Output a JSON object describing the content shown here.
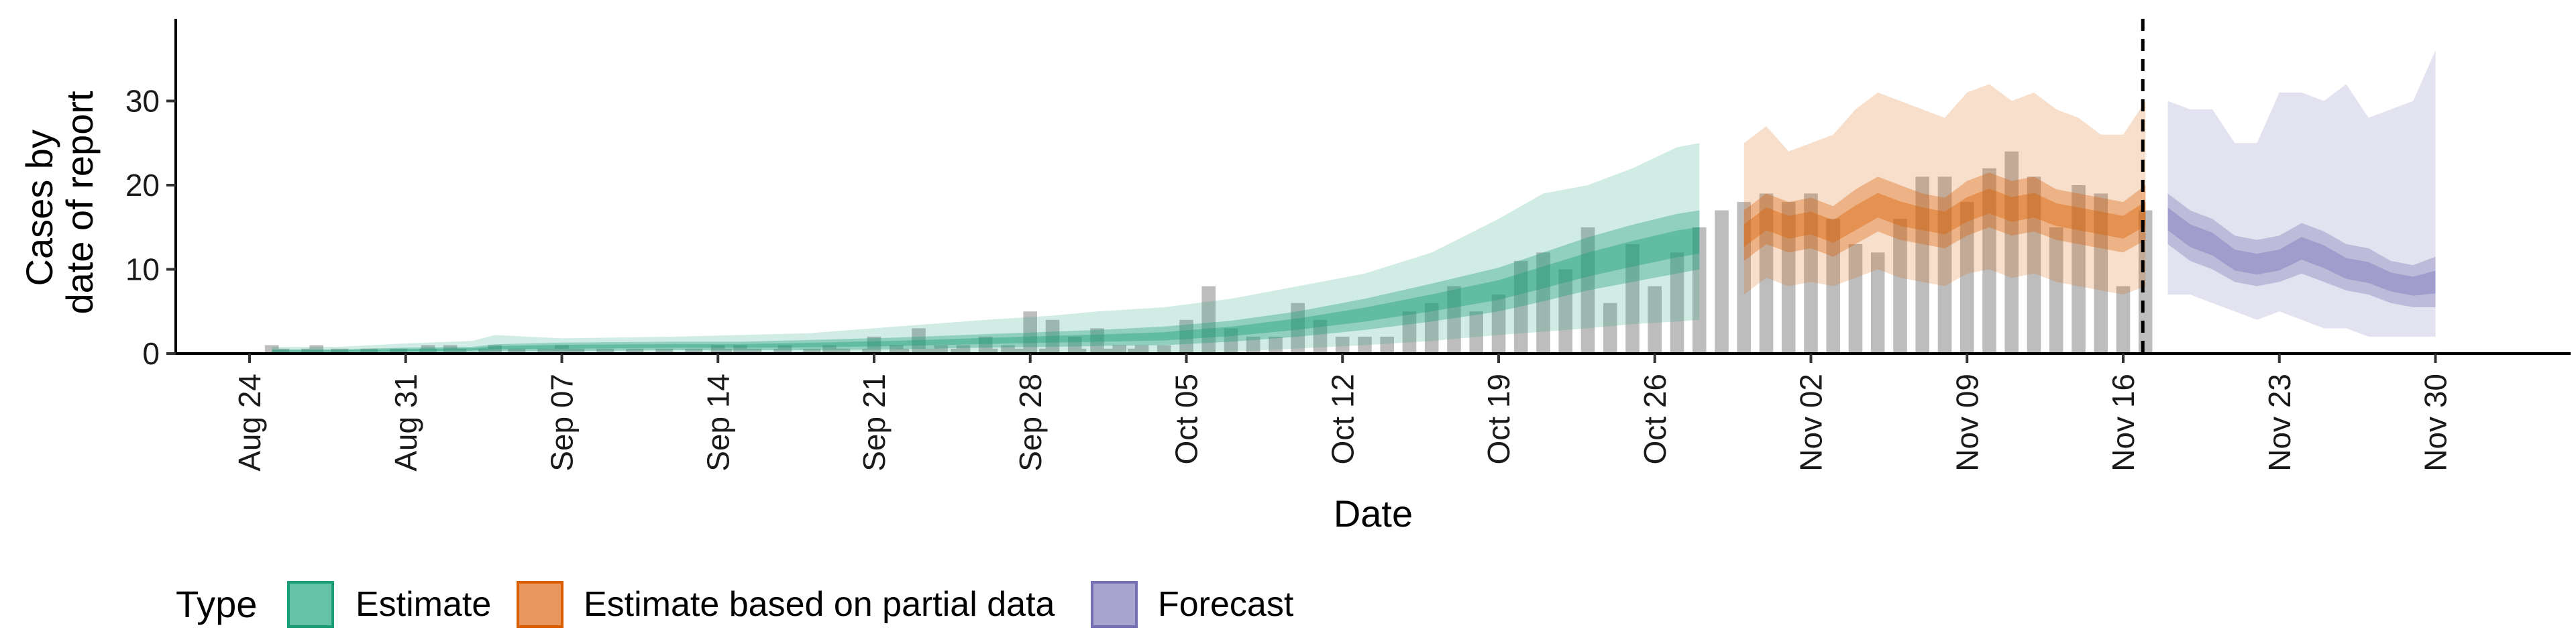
{
  "chart_data": {
    "type": "area",
    "xlabel": "Date",
    "ylabel_lines": [
      "Cases by",
      "date of report"
    ],
    "ylim": [
      0,
      37
    ],
    "yticks": [
      0,
      10,
      20,
      30
    ],
    "x_start": "2020-08-24",
    "x_ticks": [
      "Aug 24",
      "Aug 31",
      "Sep 07",
      "Sep 14",
      "Sep 21",
      "Sep 28",
      "Oct 05",
      "Oct 12",
      "Oct 19",
      "Oct 26",
      "Nov 02",
      "Nov 09",
      "Nov 16",
      "Nov 23",
      "Nov 30"
    ],
    "report_date": "Nov 17",
    "legend": {
      "title": "Type",
      "position": "bottom",
      "items": [
        {
          "label": "Estimate",
          "fill": "#66c2a5",
          "stroke": "#1b9e77"
        },
        {
          "label": "Estimate based on partial data",
          "fill": "#e8985e",
          "stroke": "#d95f02"
        },
        {
          "label": "Forecast",
          "fill": "#a8a4d0",
          "stroke": "#7570b3"
        }
      ]
    },
    "colors": {
      "estimate": "#1b9e77",
      "partial": "#d95f02",
      "forecast": "#7570b3",
      "bars": "#bdbdbd"
    },
    "bars": {
      "dates": [
        "Aug 25",
        "Aug 26",
        "Aug 27",
        "Aug 28",
        "Aug 29",
        "Aug 30",
        "Aug 31",
        "Sep 01",
        "Sep 02",
        "Sep 03",
        "Sep 04",
        "Sep 05",
        "Sep 06",
        "Sep 07",
        "Sep 08",
        "Sep 09",
        "Sep 10",
        "Sep 11",
        "Sep 12",
        "Sep 13",
        "Sep 14",
        "Sep 15",
        "Sep 16",
        "Sep 17",
        "Sep 18",
        "Sep 19",
        "Sep 20",
        "Sep 21",
        "Sep 22",
        "Sep 23",
        "Sep 24",
        "Sep 25",
        "Sep 26",
        "Sep 27",
        "Sep 28",
        "Sep 29",
        "Sep 30",
        "Oct 01",
        "Oct 02",
        "Oct 03",
        "Oct 04",
        "Oct 05",
        "Oct 06",
        "Oct 07",
        "Oct 08",
        "Oct 09",
        "Oct 10",
        "Oct 11",
        "Oct 12",
        "Oct 13",
        "Oct 14",
        "Oct 15",
        "Oct 16",
        "Oct 17",
        "Oct 18",
        "Oct 19",
        "Oct 20",
        "Oct 21",
        "Oct 22",
        "Oct 23",
        "Oct 24",
        "Oct 25",
        "Oct 26",
        "Oct 27",
        "Oct 28",
        "Oct 29",
        "Oct 30",
        "Oct 31",
        "Nov 01",
        "Nov 02",
        "Nov 03",
        "Nov 04",
        "Nov 05",
        "Nov 06",
        "Nov 07",
        "Nov 08",
        "Nov 09",
        "Nov 10",
        "Nov 11",
        "Nov 12",
        "Nov 13",
        "Nov 14",
        "Nov 15",
        "Nov 16",
        "Nov 17"
      ],
      "values": [
        1,
        0,
        1,
        0,
        0,
        0,
        0,
        1,
        1,
        0,
        1,
        0,
        0,
        1,
        0,
        0,
        0,
        0,
        0,
        0,
        1,
        1,
        0,
        1,
        0,
        1,
        0,
        2,
        1,
        3,
        1,
        1,
        2,
        1,
        5,
        4,
        2,
        3,
        1,
        1,
        1,
        4,
        8,
        3,
        2,
        2,
        6,
        4,
        2,
        2,
        2,
        5,
        6,
        8,
        5,
        7,
        11,
        12,
        10,
        15,
        6,
        13,
        8,
        12,
        15,
        17,
        18,
        19,
        18,
        19,
        16,
        13,
        12,
        16,
        21,
        21,
        18,
        22,
        24,
        21,
        15,
        20,
        19,
        8,
        17
      ],
      "dashed_line_range": [
        "Aug 25",
        "Oct 04"
      ]
    },
    "estimate": {
      "dates": [
        "Aug 25",
        "Aug 28",
        "Aug 31",
        "Sep 03",
        "Sep 04",
        "Sep 07",
        "Sep 12",
        "Sep 15",
        "Sep 18",
        "Sep 22",
        "Sep 26",
        "Sep 29",
        "Oct 01",
        "Oct 04",
        "Oct 07",
        "Oct 10",
        "Oct 13",
        "Oct 16",
        "Oct 19",
        "Oct 21",
        "Oct 23",
        "Oct 25",
        "Oct 27",
        "Oct 28"
      ],
      "median": [
        0.3,
        0.3,
        0.4,
        0.5,
        0.7,
        0.8,
        0.9,
        0.9,
        1.0,
        1.2,
        1.5,
        1.7,
        1.8,
        2.0,
        2.6,
        3.5,
        4.6,
        6.0,
        7.5,
        9.0,
        10.5,
        11.8,
        13.0,
        13.4
      ],
      "lower90": [
        0,
        0,
        0,
        0,
        0,
        0,
        0,
        0,
        0,
        0,
        0,
        0,
        0,
        0.1,
        0.2,
        0.6,
        1.0,
        1.5,
        2.2,
        2.6,
        3.0,
        3.5,
        3.8,
        4.0
      ],
      "upper90": [
        0.8,
        0.8,
        1.2,
        1.5,
        2.2,
        1.8,
        2.0,
        2.2,
        2.4,
        3.2,
        4.0,
        4.5,
        5.0,
        5.5,
        6.5,
        8.0,
        9.5,
        12.0,
        16.0,
        19.0,
        20.0,
        22.0,
        24.5,
        25.0
      ],
      "lower50": [
        0.1,
        0.1,
        0.1,
        0.2,
        0.3,
        0.3,
        0.4,
        0.4,
        0.4,
        0.5,
        0.7,
        0.8,
        0.9,
        1.0,
        1.4,
        2.0,
        2.8,
        3.8,
        5.0,
        6.2,
        7.5,
        8.5,
        9.5,
        10.0
      ],
      "upper50": [
        0.5,
        0.5,
        0.7,
        0.8,
        1.1,
        1.3,
        1.4,
        1.4,
        1.6,
        1.9,
        2.3,
        2.6,
        2.8,
        3.2,
        3.9,
        5.0,
        6.5,
        8.3,
        10.2,
        12.0,
        13.8,
        15.3,
        16.6,
        17.0
      ]
    },
    "partial": {
      "dates": [
        "Oct 30",
        "Oct 31",
        "Nov 01",
        "Nov 02",
        "Nov 03",
        "Nov 04",
        "Nov 05",
        "Nov 06",
        "Nov 07",
        "Nov 08",
        "Nov 09",
        "Nov 10",
        "Nov 11",
        "Nov 12",
        "Nov 13",
        "Nov 14",
        "Nov 15",
        "Nov 16",
        "Nov 17"
      ],
      "median": [
        14.0,
        16.0,
        15.0,
        15.5,
        14.5,
        16.0,
        17.5,
        16.5,
        16.0,
        15.5,
        17.0,
        18.0,
        17.0,
        17.5,
        16.5,
        16.0,
        15.5,
        15.0,
        16.5
      ],
      "lower90": [
        7.0,
        9.0,
        8.0,
        8.5,
        8.0,
        9.0,
        10.0,
        9.0,
        8.5,
        8.0,
        9.5,
        10.0,
        9.0,
        9.5,
        8.5,
        8.0,
        7.5,
        7.0,
        8.0
      ],
      "upper90": [
        25.0,
        27.0,
        24.0,
        25.0,
        26.0,
        29.0,
        31.0,
        30.0,
        29.0,
        28.0,
        31.0,
        32.0,
        30.0,
        31.0,
        29.0,
        28.0,
        26.0,
        26.0,
        30.0
      ],
      "lower50": [
        11.0,
        13.0,
        12.0,
        12.5,
        11.5,
        13.0,
        14.5,
        13.5,
        13.0,
        12.5,
        14.0,
        15.0,
        14.0,
        14.5,
        13.5,
        13.0,
        12.5,
        12.0,
        13.5
      ],
      "upper50": [
        17.0,
        19.0,
        18.0,
        18.5,
        17.5,
        19.5,
        21.0,
        20.0,
        19.0,
        18.5,
        20.5,
        21.5,
        20.5,
        21.0,
        19.5,
        19.0,
        18.5,
        18.0,
        20.0
      ]
    },
    "forecast": {
      "dates": [
        "Nov 18",
        "Nov 19",
        "Nov 20",
        "Nov 21",
        "Nov 22",
        "Nov 23",
        "Nov 24",
        "Nov 25",
        "Nov 26",
        "Nov 27",
        "Nov 28",
        "Nov 29",
        "Nov 30"
      ],
      "median": [
        16.0,
        14.0,
        13.0,
        11.0,
        10.5,
        11.0,
        12.5,
        11.5,
        10.0,
        9.5,
        8.5,
        8.0,
        8.5
      ],
      "lower90": [
        7.0,
        7.0,
        6.0,
        5.0,
        4.0,
        5.0,
        4.0,
        3.0,
        3.0,
        2.0,
        2.0,
        2.0,
        2.0
      ],
      "upper90": [
        30.0,
        29.0,
        29.0,
        25.0,
        25.0,
        31.0,
        31.0,
        30.0,
        32.0,
        28.0,
        29.0,
        30.0,
        36.0
      ],
      "lower50": [
        13.0,
        11.0,
        10.0,
        8.5,
        8.0,
        8.5,
        9.5,
        8.5,
        7.5,
        7.0,
        6.0,
        5.5,
        5.5
      ],
      "upper50": [
        19.0,
        17.0,
        16.0,
        14.0,
        13.5,
        14.0,
        15.5,
        14.5,
        13.0,
        12.5,
        11.0,
        10.5,
        11.5
      ]
    }
  }
}
